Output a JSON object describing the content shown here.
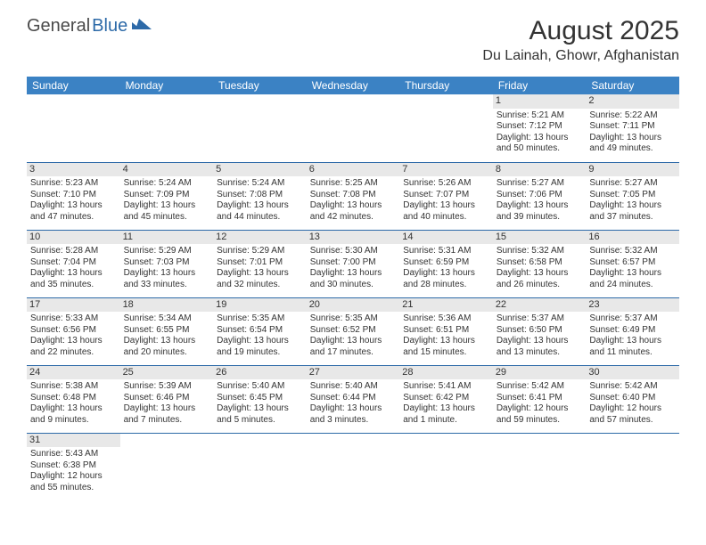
{
  "brand": {
    "part1": "General",
    "part2": "Blue",
    "shape_color": "#2d6aa8"
  },
  "title": "August 2025",
  "location": "Du Lainah, Ghowr, Afghanistan",
  "colors": {
    "header_bg": "#3b82c4",
    "header_text": "#ffffff",
    "grid_line": "#2d6aa8",
    "daynum_bg": "#e8e8e8",
    "text": "#333333",
    "background": "#ffffff"
  },
  "day_headers": [
    "Sunday",
    "Monday",
    "Tuesday",
    "Wednesday",
    "Thursday",
    "Friday",
    "Saturday"
  ],
  "weeks": [
    [
      null,
      null,
      null,
      null,
      null,
      {
        "n": "1",
        "sunrise": "Sunrise: 5:21 AM",
        "sunset": "Sunset: 7:12 PM",
        "day1": "Daylight: 13 hours",
        "day2": "and 50 minutes."
      },
      {
        "n": "2",
        "sunrise": "Sunrise: 5:22 AM",
        "sunset": "Sunset: 7:11 PM",
        "day1": "Daylight: 13 hours",
        "day2": "and 49 minutes."
      }
    ],
    [
      {
        "n": "3",
        "sunrise": "Sunrise: 5:23 AM",
        "sunset": "Sunset: 7:10 PM",
        "day1": "Daylight: 13 hours",
        "day2": "and 47 minutes."
      },
      {
        "n": "4",
        "sunrise": "Sunrise: 5:24 AM",
        "sunset": "Sunset: 7:09 PM",
        "day1": "Daylight: 13 hours",
        "day2": "and 45 minutes."
      },
      {
        "n": "5",
        "sunrise": "Sunrise: 5:24 AM",
        "sunset": "Sunset: 7:08 PM",
        "day1": "Daylight: 13 hours",
        "day2": "and 44 minutes."
      },
      {
        "n": "6",
        "sunrise": "Sunrise: 5:25 AM",
        "sunset": "Sunset: 7:08 PM",
        "day1": "Daylight: 13 hours",
        "day2": "and 42 minutes."
      },
      {
        "n": "7",
        "sunrise": "Sunrise: 5:26 AM",
        "sunset": "Sunset: 7:07 PM",
        "day1": "Daylight: 13 hours",
        "day2": "and 40 minutes."
      },
      {
        "n": "8",
        "sunrise": "Sunrise: 5:27 AM",
        "sunset": "Sunset: 7:06 PM",
        "day1": "Daylight: 13 hours",
        "day2": "and 39 minutes."
      },
      {
        "n": "9",
        "sunrise": "Sunrise: 5:27 AM",
        "sunset": "Sunset: 7:05 PM",
        "day1": "Daylight: 13 hours",
        "day2": "and 37 minutes."
      }
    ],
    [
      {
        "n": "10",
        "sunrise": "Sunrise: 5:28 AM",
        "sunset": "Sunset: 7:04 PM",
        "day1": "Daylight: 13 hours",
        "day2": "and 35 minutes."
      },
      {
        "n": "11",
        "sunrise": "Sunrise: 5:29 AM",
        "sunset": "Sunset: 7:03 PM",
        "day1": "Daylight: 13 hours",
        "day2": "and 33 minutes."
      },
      {
        "n": "12",
        "sunrise": "Sunrise: 5:29 AM",
        "sunset": "Sunset: 7:01 PM",
        "day1": "Daylight: 13 hours",
        "day2": "and 32 minutes."
      },
      {
        "n": "13",
        "sunrise": "Sunrise: 5:30 AM",
        "sunset": "Sunset: 7:00 PM",
        "day1": "Daylight: 13 hours",
        "day2": "and 30 minutes."
      },
      {
        "n": "14",
        "sunrise": "Sunrise: 5:31 AM",
        "sunset": "Sunset: 6:59 PM",
        "day1": "Daylight: 13 hours",
        "day2": "and 28 minutes."
      },
      {
        "n": "15",
        "sunrise": "Sunrise: 5:32 AM",
        "sunset": "Sunset: 6:58 PM",
        "day1": "Daylight: 13 hours",
        "day2": "and 26 minutes."
      },
      {
        "n": "16",
        "sunrise": "Sunrise: 5:32 AM",
        "sunset": "Sunset: 6:57 PM",
        "day1": "Daylight: 13 hours",
        "day2": "and 24 minutes."
      }
    ],
    [
      {
        "n": "17",
        "sunrise": "Sunrise: 5:33 AM",
        "sunset": "Sunset: 6:56 PM",
        "day1": "Daylight: 13 hours",
        "day2": "and 22 minutes."
      },
      {
        "n": "18",
        "sunrise": "Sunrise: 5:34 AM",
        "sunset": "Sunset: 6:55 PM",
        "day1": "Daylight: 13 hours",
        "day2": "and 20 minutes."
      },
      {
        "n": "19",
        "sunrise": "Sunrise: 5:35 AM",
        "sunset": "Sunset: 6:54 PM",
        "day1": "Daylight: 13 hours",
        "day2": "and 19 minutes."
      },
      {
        "n": "20",
        "sunrise": "Sunrise: 5:35 AM",
        "sunset": "Sunset: 6:52 PM",
        "day1": "Daylight: 13 hours",
        "day2": "and 17 minutes."
      },
      {
        "n": "21",
        "sunrise": "Sunrise: 5:36 AM",
        "sunset": "Sunset: 6:51 PM",
        "day1": "Daylight: 13 hours",
        "day2": "and 15 minutes."
      },
      {
        "n": "22",
        "sunrise": "Sunrise: 5:37 AM",
        "sunset": "Sunset: 6:50 PM",
        "day1": "Daylight: 13 hours",
        "day2": "and 13 minutes."
      },
      {
        "n": "23",
        "sunrise": "Sunrise: 5:37 AM",
        "sunset": "Sunset: 6:49 PM",
        "day1": "Daylight: 13 hours",
        "day2": "and 11 minutes."
      }
    ],
    [
      {
        "n": "24",
        "sunrise": "Sunrise: 5:38 AM",
        "sunset": "Sunset: 6:48 PM",
        "day1": "Daylight: 13 hours",
        "day2": "and 9 minutes."
      },
      {
        "n": "25",
        "sunrise": "Sunrise: 5:39 AM",
        "sunset": "Sunset: 6:46 PM",
        "day1": "Daylight: 13 hours",
        "day2": "and 7 minutes."
      },
      {
        "n": "26",
        "sunrise": "Sunrise: 5:40 AM",
        "sunset": "Sunset: 6:45 PM",
        "day1": "Daylight: 13 hours",
        "day2": "and 5 minutes."
      },
      {
        "n": "27",
        "sunrise": "Sunrise: 5:40 AM",
        "sunset": "Sunset: 6:44 PM",
        "day1": "Daylight: 13 hours",
        "day2": "and 3 minutes."
      },
      {
        "n": "28",
        "sunrise": "Sunrise: 5:41 AM",
        "sunset": "Sunset: 6:42 PM",
        "day1": "Daylight: 13 hours",
        "day2": "and 1 minute."
      },
      {
        "n": "29",
        "sunrise": "Sunrise: 5:42 AM",
        "sunset": "Sunset: 6:41 PM",
        "day1": "Daylight: 12 hours",
        "day2": "and 59 minutes."
      },
      {
        "n": "30",
        "sunrise": "Sunrise: 5:42 AM",
        "sunset": "Sunset: 6:40 PM",
        "day1": "Daylight: 12 hours",
        "day2": "and 57 minutes."
      }
    ],
    [
      {
        "n": "31",
        "sunrise": "Sunrise: 5:43 AM",
        "sunset": "Sunset: 6:38 PM",
        "day1": "Daylight: 12 hours",
        "day2": "and 55 minutes."
      },
      null,
      null,
      null,
      null,
      null,
      null
    ]
  ]
}
